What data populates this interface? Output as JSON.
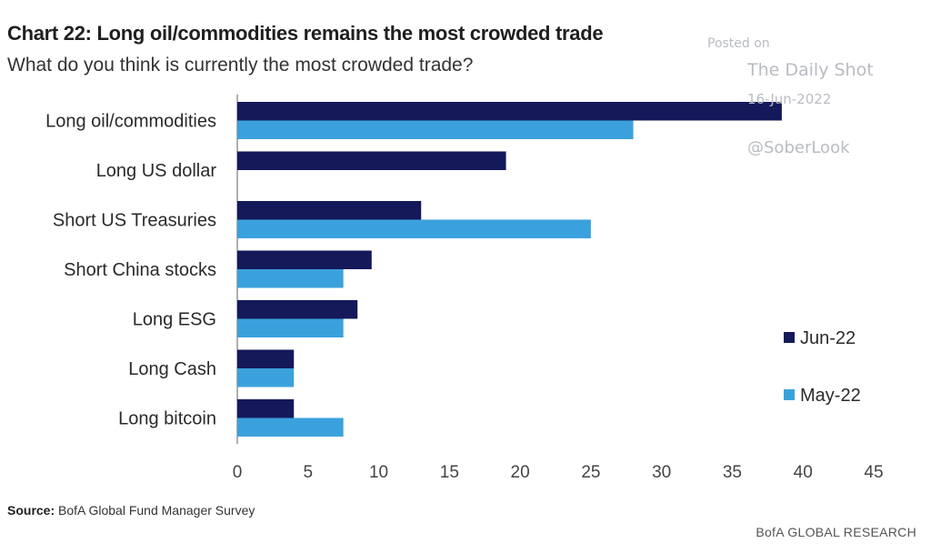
{
  "header": {
    "title": "Chart 22: Long oil/commodities remains the most crowded trade",
    "subtitle": "What do you think is currently the most crowded trade?"
  },
  "watermark": {
    "line1": "Posted on",
    "line2": "The Daily Shot",
    "line3": "16-Jun-2022",
    "line4": "@SoberLook"
  },
  "footer": {
    "source_label": "Source:",
    "source_text": "BofA Global Fund Manager Survey",
    "brand": "BofA GLOBAL RESEARCH"
  },
  "chart_data": {
    "type": "bar",
    "orientation": "horizontal",
    "categories": [
      "Long oil/commodities",
      "Long US dollar",
      "Short US Treasuries",
      "Short China stocks",
      "Long ESG",
      "Long Cash",
      "Long bitcoin"
    ],
    "series": [
      {
        "name": "Jun-22",
        "color": "#14195a",
        "values": [
          38.5,
          19,
          13,
          9.5,
          8.5,
          4,
          4
        ]
      },
      {
        "name": "May-22",
        "color": "#3ba1dc",
        "values": [
          28,
          null,
          25,
          7.5,
          7.5,
          4,
          7.5
        ]
      }
    ],
    "xlim": [
      0,
      45
    ],
    "xticks": [
      0,
      5,
      10,
      15,
      20,
      25,
      30,
      35,
      40,
      45
    ],
    "grid": false,
    "legend_position": "right"
  }
}
